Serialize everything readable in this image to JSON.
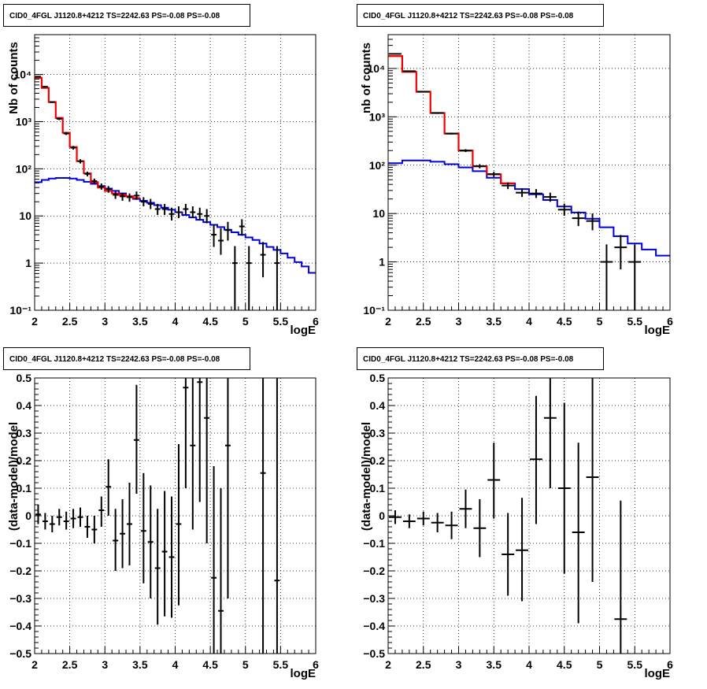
{
  "chart_data": [
    {
      "type": "histogram",
      "title": "CID0_4FGL J1120.8+4212 TS=2242.63 PS=-0.08 PS=-0.08",
      "xlabel": "logE",
      "ylabel": "Nb of counts",
      "yscale": "log",
      "xlim": [
        2,
        6
      ],
      "ylim": [
        0.1,
        70000
      ],
      "grid": true,
      "x_ticks": [
        "2",
        "2.5",
        "3",
        "3.5",
        "4",
        "4.5",
        "5",
        "5.5",
        "6"
      ],
      "y_ticks": [
        {
          "v": 0.1,
          "label": "10⁻¹"
        },
        {
          "v": 1,
          "label": "1"
        },
        {
          "v": 10,
          "label": "10"
        },
        {
          "v": 100,
          "label": "10²"
        },
        {
          "v": 1000,
          "label": "10³"
        },
        {
          "v": 10000,
          "label": "10⁴"
        }
      ],
      "bin_edges": [
        2.0,
        2.1,
        2.2,
        2.3,
        2.4,
        2.5,
        2.6,
        2.7,
        2.8,
        2.9,
        3.0,
        3.1,
        3.2,
        3.3,
        3.4,
        3.5
      ],
      "total_model": [
        8500,
        5200,
        2600,
        1200,
        580,
        290,
        145,
        80,
        52,
        40,
        34,
        30,
        28,
        26,
        24
      ],
      "bkg_edges": [
        2.0,
        2.1,
        2.2,
        2.3,
        2.4,
        2.5,
        2.6,
        2.7,
        2.8,
        2.9,
        3.0,
        3.1,
        3.2,
        3.3,
        3.4,
        3.5,
        3.6,
        3.7,
        3.8,
        3.9,
        4.0,
        4.1,
        4.2,
        4.3,
        4.4,
        4.5,
        4.6,
        4.7,
        4.8,
        4.9,
        5.0,
        5.1,
        5.2,
        5.3,
        5.4,
        5.5,
        5.6,
        5.7,
        5.8,
        5.9,
        6.0
      ],
      "bkg_model": [
        52,
        58,
        62,
        64,
        64,
        62,
        58,
        53,
        48,
        43,
        38,
        34,
        30,
        26,
        23,
        21,
        19,
        17,
        15,
        13.5,
        12,
        10.5,
        9.3,
        8.3,
        7.4,
        6.5,
        5.8,
        5.1,
        4.5,
        4.0,
        3.5,
        3.1,
        2.6,
        2.2,
        1.9,
        1.6,
        1.3,
        1.05,
        0.85,
        0.62
      ],
      "points": [
        {
          "x": 2.05,
          "y": 9000,
          "lo": 8700,
          "hi": 9300
        },
        {
          "x": 2.15,
          "y": 5500,
          "lo": 5300,
          "hi": 5700
        },
        {
          "x": 2.25,
          "y": 2600,
          "lo": 2500,
          "hi": 2700
        },
        {
          "x": 2.35,
          "y": 1150,
          "lo": 1080,
          "hi": 1220
        },
        {
          "x": 2.45,
          "y": 560,
          "lo": 520,
          "hi": 600
        },
        {
          "x": 2.55,
          "y": 280,
          "lo": 255,
          "hi": 305
        },
        {
          "x": 2.65,
          "y": 145,
          "lo": 130,
          "hi": 160
        },
        {
          "x": 2.75,
          "y": 78,
          "lo": 69,
          "hi": 87
        },
        {
          "x": 2.85,
          "y": 55,
          "lo": 48,
          "hi": 62
        },
        {
          "x": 2.95,
          "y": 42,
          "lo": 36,
          "hi": 49
        },
        {
          "x": 3.05,
          "y": 37,
          "lo": 31,
          "hi": 43
        },
        {
          "x": 3.15,
          "y": 28,
          "lo": 23,
          "hi": 33
        },
        {
          "x": 3.25,
          "y": 26,
          "lo": 21,
          "hi": 31
        },
        {
          "x": 3.35,
          "y": 25,
          "lo": 20,
          "hi": 30
        },
        {
          "x": 3.45,
          "y": 27,
          "lo": 22,
          "hi": 33
        },
        {
          "x": 3.55,
          "y": 20,
          "lo": 16,
          "hi": 25
        },
        {
          "x": 3.65,
          "y": 18,
          "lo": 14,
          "hi": 23
        },
        {
          "x": 3.75,
          "y": 14,
          "lo": 10.5,
          "hi": 18
        },
        {
          "x": 3.85,
          "y": 14,
          "lo": 10.5,
          "hi": 18
        },
        {
          "x": 3.95,
          "y": 11,
          "lo": 8,
          "hi": 15
        },
        {
          "x": 4.05,
          "y": 12,
          "lo": 9,
          "hi": 16
        },
        {
          "x": 4.15,
          "y": 14,
          "lo": 10.5,
          "hi": 18
        },
        {
          "x": 4.25,
          "y": 12,
          "lo": 9,
          "hi": 16
        },
        {
          "x": 4.35,
          "y": 11,
          "lo": 8,
          "hi": 15
        },
        {
          "x": 4.45,
          "y": 10,
          "lo": 7,
          "hi": 14
        },
        {
          "x": 4.55,
          "y": 4,
          "lo": 2.2,
          "hi": 6.5
        },
        {
          "x": 4.65,
          "y": 3,
          "lo": 1.5,
          "hi": 5.5
        },
        {
          "x": 4.75,
          "y": 5,
          "lo": 3,
          "hi": 7.5
        },
        {
          "x": 4.85,
          "y": 1,
          "lo": 0.1,
          "hi": 2.3
        },
        {
          "x": 4.95,
          "y": 6,
          "lo": 3.8,
          "hi": 8.5
        },
        {
          "x": 5.05,
          "y": 1,
          "lo": 0.1,
          "hi": 2.3
        },
        {
          "x": 5.25,
          "y": 1.5,
          "lo": 0.5,
          "hi": 2.8
        },
        {
          "x": 5.45,
          "y": 1,
          "lo": 0.1,
          "hi": 2.3
        }
      ]
    },
    {
      "type": "histogram",
      "title": "CID0_4FGL J1120.8+4212 TS=2242.63 PS=-0.08 PS=-0.08",
      "xlabel": "logE",
      "ylabel": "nb of counts",
      "yscale": "log",
      "xlim": [
        2,
        6
      ],
      "ylim": [
        0.1,
        50000
      ],
      "grid": true,
      "x_ticks": [
        "2",
        "2.5",
        "3",
        "3.5",
        "4",
        "4.5",
        "5",
        "5.5",
        "6"
      ],
      "y_ticks": [
        {
          "v": 0.1,
          "label": "10⁻¹"
        },
        {
          "v": 1,
          "label": "1"
        },
        {
          "v": 10,
          "label": "10"
        },
        {
          "v": 100,
          "label": "10²"
        },
        {
          "v": 1000,
          "label": "10³"
        },
        {
          "v": 10000,
          "label": "10⁴"
        }
      ],
      "bin_edges": [
        2.0,
        2.2,
        2.4,
        2.6,
        2.8,
        3.0,
        3.2,
        3.4,
        3.6,
        3.8
      ],
      "total_model": [
        18000,
        8500,
        3300,
        1200,
        450,
        200,
        95,
        65,
        42
      ],
      "bkg_edges": [
        2.0,
        2.2,
        2.4,
        2.6,
        2.8,
        3.0,
        3.2,
        3.4,
        3.6,
        3.8,
        4.0,
        4.2,
        4.4,
        4.6,
        4.8,
        5.0,
        5.2,
        5.4,
        5.6,
        5.8,
        6.0
      ],
      "bkg_model": [
        110,
        125,
        125,
        118,
        105,
        90,
        75,
        55,
        42,
        32,
        25,
        19,
        14,
        10.5,
        7.8,
        5.2,
        3.4,
        2.4,
        1.8,
        1.35
      ],
      "points": [
        {
          "x": 2.1,
          "y": 20000,
          "lo": 19600,
          "hi": 20400
        },
        {
          "x": 2.3,
          "y": 8800,
          "lo": 8600,
          "hi": 9000
        },
        {
          "x": 2.5,
          "y": 3300,
          "lo": 3200,
          "hi": 3400
        },
        {
          "x": 2.7,
          "y": 1200,
          "lo": 1150,
          "hi": 1250
        },
        {
          "x": 2.9,
          "y": 450,
          "lo": 430,
          "hi": 470
        },
        {
          "x": 3.1,
          "y": 200,
          "lo": 187,
          "hi": 214
        },
        {
          "x": 3.3,
          "y": 95,
          "lo": 86,
          "hi": 105
        },
        {
          "x": 3.5,
          "y": 65,
          "lo": 57,
          "hi": 73
        },
        {
          "x": 3.7,
          "y": 38,
          "lo": 32,
          "hi": 44
        },
        {
          "x": 3.9,
          "y": 27,
          "lo": 22,
          "hi": 33
        },
        {
          "x": 4.1,
          "y": 26,
          "lo": 21,
          "hi": 32
        },
        {
          "x": 4.3,
          "y": 22,
          "lo": 17.5,
          "hi": 27
        },
        {
          "x": 4.5,
          "y": 12,
          "lo": 9,
          "hi": 16
        },
        {
          "x": 4.7,
          "y": 8,
          "lo": 5.5,
          "hi": 11
        },
        {
          "x": 4.9,
          "y": 7,
          "lo": 4.5,
          "hi": 10
        },
        {
          "x": 5.1,
          "y": 1,
          "lo": 0.1,
          "hi": 2.3
        },
        {
          "x": 5.3,
          "y": 2,
          "lo": 0.7,
          "hi": 3.6
        },
        {
          "x": 5.5,
          "y": 1,
          "lo": 0.1,
          "hi": 2.3
        }
      ]
    },
    {
      "type": "scatter",
      "title": "CID0_4FGL J1120.8+4212 TS=2242.63 PS=-0.08 PS=-0.08",
      "xlabel": "logE",
      "ylabel": "(data-model)/model",
      "xlim": [
        2,
        6
      ],
      "ylim": [
        -0.5,
        0.5
      ],
      "grid": true,
      "x_ticks": [
        "2",
        "2.5",
        "3",
        "3.5",
        "4",
        "4.5",
        "5",
        "5.5",
        "6"
      ],
      "y_ticks": [
        {
          "v": -0.5,
          "label": "−0.5"
        },
        {
          "v": -0.4,
          "label": "−0.4"
        },
        {
          "v": -0.3,
          "label": "−0.3"
        },
        {
          "v": -0.2,
          "label": "−0.2"
        },
        {
          "v": -0.1,
          "label": "−0.1"
        },
        {
          "v": 0,
          "label": "0"
        },
        {
          "v": 0.1,
          "label": "0.1"
        },
        {
          "v": 0.2,
          "label": "0.2"
        },
        {
          "v": 0.3,
          "label": "0.3"
        },
        {
          "v": 0.4,
          "label": "0.4"
        },
        {
          "v": 0.5,
          "label": "0.5"
        }
      ],
      "half_width": 0.05,
      "points": [
        {
          "x": 2.05,
          "y": 0.005,
          "lo": -0.03,
          "hi": 0.04
        },
        {
          "x": 2.15,
          "y": -0.02,
          "lo": -0.05,
          "hi": 0.01
        },
        {
          "x": 2.25,
          "y": -0.03,
          "lo": -0.06,
          "hi": 0.0
        },
        {
          "x": 2.35,
          "y": -0.005,
          "lo": -0.035,
          "hi": 0.025
        },
        {
          "x": 2.45,
          "y": -0.02,
          "lo": -0.05,
          "hi": 0.015
        },
        {
          "x": 2.55,
          "y": -0.01,
          "lo": -0.045,
          "hi": 0.025
        },
        {
          "x": 2.65,
          "y": -0.005,
          "lo": -0.04,
          "hi": 0.03
        },
        {
          "x": 2.75,
          "y": -0.04,
          "lo": -0.08,
          "hi": 0.0
        },
        {
          "x": 2.85,
          "y": -0.05,
          "lo": -0.1,
          "hi": 0.0
        },
        {
          "x": 2.95,
          "y": 0.02,
          "lo": -0.04,
          "hi": 0.07
        },
        {
          "x": 3.05,
          "y": 0.105,
          "lo": 0.0,
          "hi": 0.205
        },
        {
          "x": 3.15,
          "y": -0.09,
          "lo": -0.2,
          "hi": 0.025
        },
        {
          "x": 3.25,
          "y": -0.065,
          "lo": -0.19,
          "hi": 0.06
        },
        {
          "x": 3.35,
          "y": -0.03,
          "lo": -0.18,
          "hi": 0.12
        },
        {
          "x": 3.45,
          "y": 0.275,
          "lo": 0.08,
          "hi": 0.475
        },
        {
          "x": 3.55,
          "y": -0.055,
          "lo": -0.245,
          "hi": 0.155
        },
        {
          "x": 3.65,
          "y": -0.095,
          "lo": -0.3,
          "hi": 0.11
        },
        {
          "x": 3.75,
          "y": -0.19,
          "lo": -0.395,
          "hi": 0.025
        },
        {
          "x": 3.85,
          "y": -0.13,
          "lo": -0.365,
          "hi": 0.09
        },
        {
          "x": 3.95,
          "y": -0.15,
          "lo": -0.37,
          "hi": 0.07
        },
        {
          "x": 4.05,
          "y": -0.03,
          "lo": -0.325,
          "hi": 0.26
        },
        {
          "x": 4.15,
          "y": 0.465,
          "lo": 0.1,
          "hi": 0.5
        },
        {
          "x": 4.25,
          "y": 0.255,
          "lo": -0.05,
          "hi": 0.5
        },
        {
          "x": 4.35,
          "y": 0.485,
          "lo": 0.05,
          "hi": 0.5
        },
        {
          "x": 4.45,
          "y": 0.355,
          "lo": -0.1,
          "hi": 0.5
        },
        {
          "x": 4.55,
          "y": -0.225,
          "lo": -0.5,
          "hi": 0.18
        },
        {
          "x": 4.65,
          "y": -0.345,
          "lo": -0.5,
          "hi": 0.1
        },
        {
          "x": 4.75,
          "y": 0.255,
          "lo": -0.3,
          "hi": 0.5
        },
        {
          "x": 5.25,
          "y": 0.155,
          "lo": -0.5,
          "hi": 0.5
        },
        {
          "x": 5.45,
          "y": -0.235,
          "lo": -0.5,
          "hi": 0.5
        }
      ]
    },
    {
      "type": "scatter",
      "title": "CID0_4FGL J1120.8+4212 TS=2242.63 PS=-0.08 PS=-0.08",
      "xlabel": "logE",
      "ylabel": "(data-model)/model",
      "xlim": [
        2,
        6
      ],
      "ylim": [
        -0.5,
        0.5
      ],
      "grid": true,
      "x_ticks": [
        "2",
        "2.5",
        "3",
        "3.5",
        "4",
        "4.5",
        "5",
        "5.5",
        "6"
      ],
      "y_ticks": [
        {
          "v": -0.5,
          "label": "−0.5"
        },
        {
          "v": -0.4,
          "label": "−0.4"
        },
        {
          "v": -0.3,
          "label": "−0.3"
        },
        {
          "v": -0.2,
          "label": "−0.2"
        },
        {
          "v": -0.1,
          "label": "−0.1"
        },
        {
          "v": 0,
          "label": "0"
        },
        {
          "v": 0.1,
          "label": "0.1"
        },
        {
          "v": 0.2,
          "label": "0.2"
        },
        {
          "v": 0.3,
          "label": "0.3"
        },
        {
          "v": 0.4,
          "label": "0.4"
        },
        {
          "v": 0.5,
          "label": "0.5"
        }
      ],
      "half_width": 0.1,
      "points": [
        {
          "x": 2.1,
          "y": -0.005,
          "lo": -0.03,
          "hi": 0.02
        },
        {
          "x": 2.3,
          "y": -0.02,
          "lo": -0.045,
          "hi": 0.005
        },
        {
          "x": 2.5,
          "y": -0.01,
          "lo": -0.035,
          "hi": 0.015
        },
        {
          "x": 2.7,
          "y": -0.025,
          "lo": -0.06,
          "hi": 0.01
        },
        {
          "x": 2.9,
          "y": -0.035,
          "lo": -0.085,
          "hi": 0.015
        },
        {
          "x": 3.1,
          "y": 0.025,
          "lo": -0.045,
          "hi": 0.095
        },
        {
          "x": 3.3,
          "y": -0.045,
          "lo": -0.15,
          "hi": 0.06
        },
        {
          "x": 3.5,
          "y": 0.13,
          "lo": -0.01,
          "hi": 0.265
        },
        {
          "x": 3.7,
          "y": -0.14,
          "lo": -0.29,
          "hi": 0.01
        },
        {
          "x": 3.9,
          "y": -0.125,
          "lo": -0.31,
          "hi": 0.065
        },
        {
          "x": 4.1,
          "y": 0.205,
          "lo": -0.03,
          "hi": 0.435
        },
        {
          "x": 4.3,
          "y": 0.355,
          "lo": 0.1,
          "hi": 0.5
        },
        {
          "x": 4.5,
          "y": 0.1,
          "lo": -0.21,
          "hi": 0.41
        },
        {
          "x": 4.7,
          "y": -0.06,
          "lo": -0.39,
          "hi": 0.265
        },
        {
          "x": 4.9,
          "y": 0.14,
          "lo": -0.24,
          "hi": 0.5
        },
        {
          "x": 5.3,
          "y": -0.375,
          "lo": -0.5,
          "hi": 0.055
        }
      ]
    }
  ]
}
